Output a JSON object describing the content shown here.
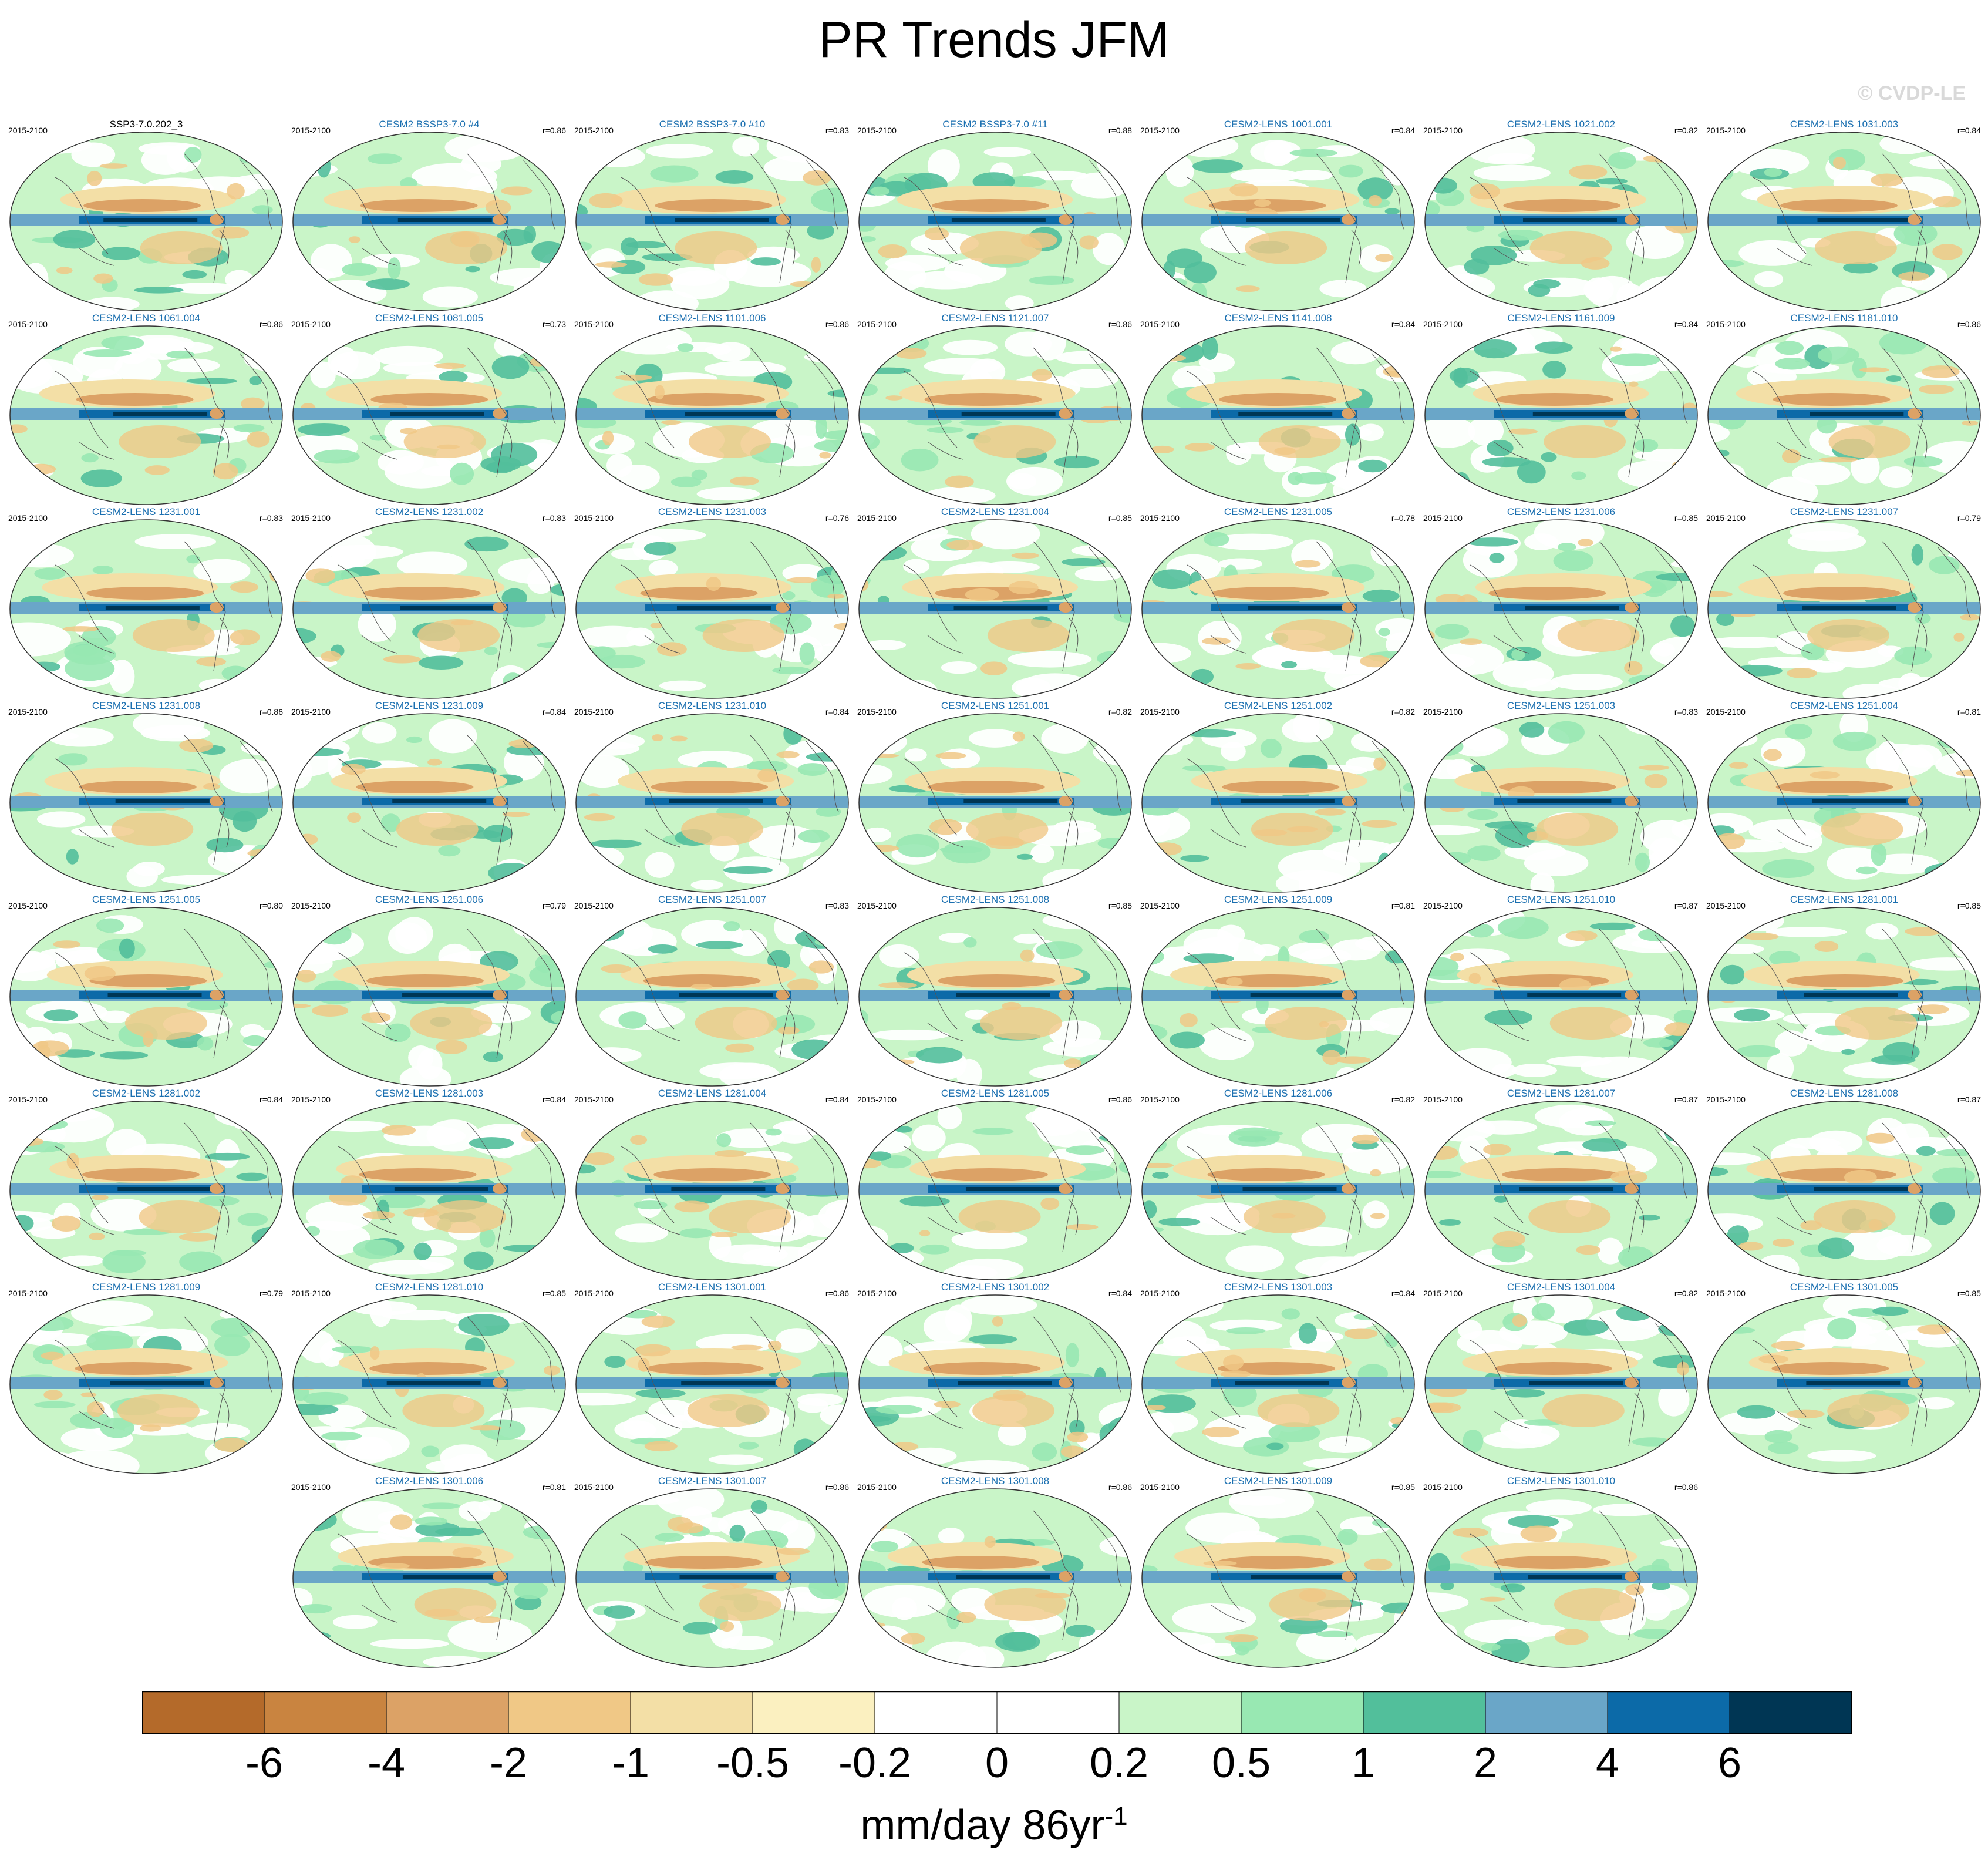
{
  "title": "PR Trends JFM",
  "watermark": "© CVDP-LE",
  "period": "2015-2100",
  "panels": [
    {
      "name": "SSP3-7.0.202_3",
      "r": ""
    },
    {
      "name": "CESM2 BSSP3-7.0 #4",
      "r": "r=0.86"
    },
    {
      "name": "CESM2 BSSP3-7.0 #10",
      "r": "r=0.83"
    },
    {
      "name": "CESM2 BSSP3-7.0 #11",
      "r": "r=0.88"
    },
    {
      "name": "CESM2-LENS 1001.001",
      "r": "r=0.84"
    },
    {
      "name": "CESM2-LENS 1021.002",
      "r": "r=0.82"
    },
    {
      "name": "CESM2-LENS 1031.003",
      "r": "r=0.84"
    },
    {
      "name": "CESM2-LENS 1061.004",
      "r": "r=0.86"
    },
    {
      "name": "CESM2-LENS 1081.005",
      "r": "r=0.73"
    },
    {
      "name": "CESM2-LENS 1101.006",
      "r": "r=0.86"
    },
    {
      "name": "CESM2-LENS 1121.007",
      "r": "r=0.86"
    },
    {
      "name": "CESM2-LENS 1141.008",
      "r": "r=0.84"
    },
    {
      "name": "CESM2-LENS 1161.009",
      "r": "r=0.84"
    },
    {
      "name": "CESM2-LENS 1181.010",
      "r": "r=0.86"
    },
    {
      "name": "CESM2-LENS 1231.001",
      "r": "r=0.83"
    },
    {
      "name": "CESM2-LENS 1231.002",
      "r": "r=0.83"
    },
    {
      "name": "CESM2-LENS 1231.003",
      "r": "r=0.76"
    },
    {
      "name": "CESM2-LENS 1231.004",
      "r": "r=0.85"
    },
    {
      "name": "CESM2-LENS 1231.005",
      "r": "r=0.78"
    },
    {
      "name": "CESM2-LENS 1231.006",
      "r": "r=0.85"
    },
    {
      "name": "CESM2-LENS 1231.007",
      "r": "r=0.79"
    },
    {
      "name": "CESM2-LENS 1231.008",
      "r": "r=0.86"
    },
    {
      "name": "CESM2-LENS 1231.009",
      "r": "r=0.84"
    },
    {
      "name": "CESM2-LENS 1231.010",
      "r": "r=0.84"
    },
    {
      "name": "CESM2-LENS 1251.001",
      "r": "r=0.82"
    },
    {
      "name": "CESM2-LENS 1251.002",
      "r": "r=0.82"
    },
    {
      "name": "CESM2-LENS 1251.003",
      "r": "r=0.83"
    },
    {
      "name": "CESM2-LENS 1251.004",
      "r": "r=0.81"
    },
    {
      "name": "CESM2-LENS 1251.005",
      "r": "r=0.80"
    },
    {
      "name": "CESM2-LENS 1251.006",
      "r": "r=0.79"
    },
    {
      "name": "CESM2-LENS 1251.007",
      "r": "r=0.83"
    },
    {
      "name": "CESM2-LENS 1251.008",
      "r": "r=0.85"
    },
    {
      "name": "CESM2-LENS 1251.009",
      "r": "r=0.81"
    },
    {
      "name": "CESM2-LENS 1251.010",
      "r": "r=0.87"
    },
    {
      "name": "CESM2-LENS 1281.001",
      "r": "r=0.85"
    },
    {
      "name": "CESM2-LENS 1281.002",
      "r": "r=0.84"
    },
    {
      "name": "CESM2-LENS 1281.003",
      "r": "r=0.84"
    },
    {
      "name": "CESM2-LENS 1281.004",
      "r": "r=0.84"
    },
    {
      "name": "CESM2-LENS 1281.005",
      "r": "r=0.86"
    },
    {
      "name": "CESM2-LENS 1281.006",
      "r": "r=0.82"
    },
    {
      "name": "CESM2-LENS 1281.007",
      "r": "r=0.87"
    },
    {
      "name": "CESM2-LENS 1281.008",
      "r": "r=0.87"
    },
    {
      "name": "CESM2-LENS 1281.009",
      "r": "r=0.79"
    },
    {
      "name": "CESM2-LENS 1281.010",
      "r": "r=0.85"
    },
    {
      "name": "CESM2-LENS 1301.001",
      "r": "r=0.86"
    },
    {
      "name": "CESM2-LENS 1301.002",
      "r": "r=0.84"
    },
    {
      "name": "CESM2-LENS 1301.003",
      "r": "r=0.84"
    },
    {
      "name": "CESM2-LENS 1301.004",
      "r": "r=0.82"
    },
    {
      "name": "CESM2-LENS 1301.005",
      "r": "r=0.85"
    },
    {
      "name": "CESM2-LENS 1301.006",
      "r": "r=0.81"
    },
    {
      "name": "CESM2-LENS 1301.007",
      "r": "r=0.86"
    },
    {
      "name": "CESM2-LENS 1301.008",
      "r": "r=0.86"
    },
    {
      "name": "CESM2-LENS 1301.009",
      "r": "r=0.85"
    },
    {
      "name": "CESM2-LENS 1301.010",
      "r": "r=0.86"
    }
  ],
  "colorbar": {
    "colors": [
      "#b46a2a",
      "#c98440",
      "#dca266",
      "#f0c886",
      "#f3dfa6",
      "#fbf0c0",
      "#ffffff",
      "#ffffff",
      "#c9f5c8",
      "#98e8b2",
      "#52bf9b",
      "#6aa6c8",
      "#0c6aa8",
      "#003654"
    ],
    "labels": [
      "-6",
      "-4",
      "-2",
      "-1",
      "-0.5",
      "-0.2",
      "0",
      "0.2",
      "0.5",
      "1",
      "2",
      "4",
      "6"
    ]
  },
  "units": {
    "main": "mm/day 86yr",
    "exponent": "-1"
  }
}
